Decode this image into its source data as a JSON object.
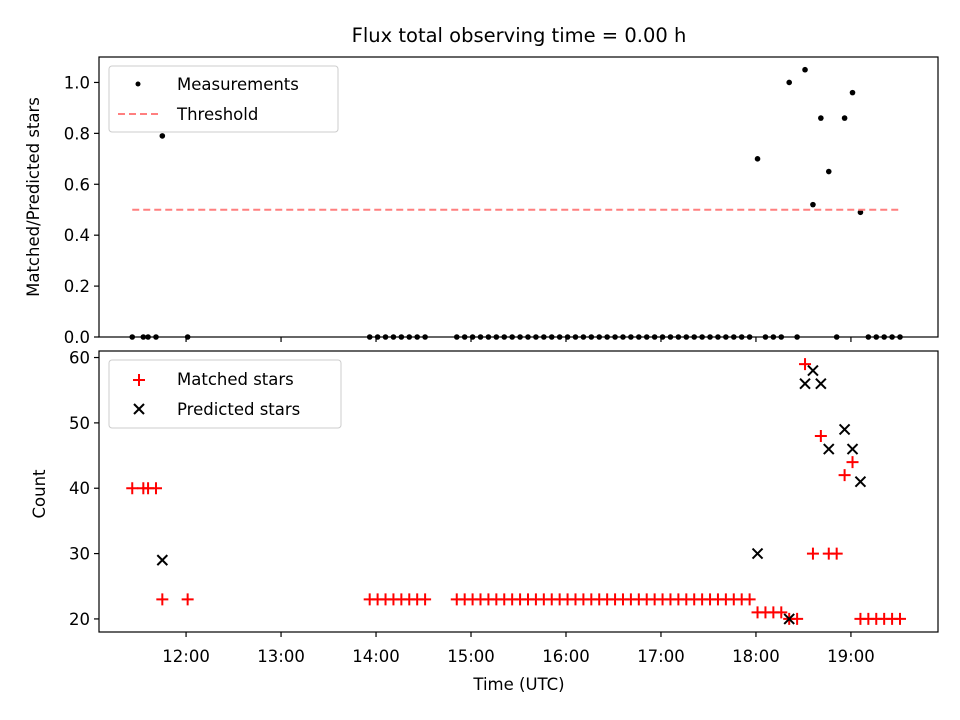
{
  "chart_data": {
    "title": "Flux total observing time = 0.00 h",
    "panels": [
      {
        "type": "scatter",
        "ylabel": "Matched/Predicted stars",
        "ylim": [
          0,
          1.1
        ],
        "yticks": [
          0.0,
          0.2,
          0.4,
          0.6,
          0.8,
          1.0
        ],
        "ytick_labels": [
          "0.0",
          "0.2",
          "0.4",
          "0.6",
          "0.8",
          "1.0"
        ],
        "legend": {
          "placement": "upper-left",
          "entries": [
            "Measurements",
            "Threshold"
          ]
        },
        "series": [
          {
            "name": "Measurements",
            "marker": "dot",
            "color": "#000000",
            "points": [
              [
                "11:26",
                0.0
              ],
              [
                "11:33",
                0.0
              ],
              [
                "11:36",
                0.0
              ],
              [
                "11:41",
                0.0
              ],
              [
                "11:45",
                0.79
              ],
              [
                "12:01",
                0.0
              ],
              [
                "13:56",
                0.0
              ],
              [
                "14:01",
                0.0
              ],
              [
                "14:06",
                0.0
              ],
              [
                "14:11",
                0.0
              ],
              [
                "14:16",
                0.0
              ],
              [
                "14:21",
                0.0
              ],
              [
                "14:26",
                0.0
              ],
              [
                "14:31",
                0.0
              ],
              [
                "14:51",
                0.0
              ],
              [
                "14:56",
                0.0
              ],
              [
                "15:01",
                0.0
              ],
              [
                "15:06",
                0.0
              ],
              [
                "15:11",
                0.0
              ],
              [
                "15:16",
                0.0
              ],
              [
                "15:21",
                0.0
              ],
              [
                "15:26",
                0.0
              ],
              [
                "15:31",
                0.0
              ],
              [
                "15:36",
                0.0
              ],
              [
                "15:41",
                0.0
              ],
              [
                "15:46",
                0.0
              ],
              [
                "15:51",
                0.0
              ],
              [
                "15:56",
                0.0
              ],
              [
                "16:01",
                0.0
              ],
              [
                "16:06",
                0.0
              ],
              [
                "16:11",
                0.0
              ],
              [
                "16:16",
                0.0
              ],
              [
                "16:21",
                0.0
              ],
              [
                "16:26",
                0.0
              ],
              [
                "16:31",
                0.0
              ],
              [
                "16:36",
                0.0
              ],
              [
                "16:41",
                0.0
              ],
              [
                "16:46",
                0.0
              ],
              [
                "16:51",
                0.0
              ],
              [
                "16:56",
                0.0
              ],
              [
                "17:01",
                0.0
              ],
              [
                "17:06",
                0.0
              ],
              [
                "17:11",
                0.0
              ],
              [
                "17:16",
                0.0
              ],
              [
                "17:21",
                0.0
              ],
              [
                "17:26",
                0.0
              ],
              [
                "17:31",
                0.0
              ],
              [
                "17:36",
                0.0
              ],
              [
                "17:41",
                0.0
              ],
              [
                "17:46",
                0.0
              ],
              [
                "17:51",
                0.0
              ],
              [
                "17:56",
                0.0
              ],
              [
                "18:01",
                0.7
              ],
              [
                "18:06",
                0.0
              ],
              [
                "18:11",
                0.0
              ],
              [
                "18:16",
                0.0
              ],
              [
                "18:21",
                1.0
              ],
              [
                "18:26",
                0.0
              ],
              [
                "18:31",
                1.05
              ],
              [
                "18:36",
                0.52
              ],
              [
                "18:41",
                0.86
              ],
              [
                "18:46",
                0.65
              ],
              [
                "18:51",
                0.0
              ],
              [
                "18:56",
                0.86
              ],
              [
                "19:01",
                0.96
              ],
              [
                "19:06",
                0.49
              ],
              [
                "19:11",
                0.0
              ],
              [
                "19:16",
                0.0
              ],
              [
                "19:21",
                0.0
              ],
              [
                "19:26",
                0.0
              ],
              [
                "19:31",
                0.0
              ]
            ]
          },
          {
            "name": "Threshold",
            "marker": "dashed-line",
            "color": "#ff7f7f",
            "y": 0.5,
            "x_range": [
              "11:26",
              "19:31"
            ]
          }
        ]
      },
      {
        "type": "scatter",
        "ylabel": "Count",
        "xlabel": "Time (UTC)",
        "ylim": [
          18,
          61
        ],
        "yticks": [
          20,
          30,
          40,
          50,
          60
        ],
        "ytick_labels": [
          "20",
          "30",
          "40",
          "50",
          "60"
        ],
        "legend": {
          "placement": "upper-left",
          "entries": [
            "Matched stars",
            "Predicted stars"
          ]
        },
        "series": [
          {
            "name": "Matched stars",
            "marker": "plus",
            "color": "#ff0000",
            "points": [
              [
                "11:26",
                40
              ],
              [
                "11:33",
                40
              ],
              [
                "11:36",
                40
              ],
              [
                "11:41",
                40
              ],
              [
                "11:45",
                23
              ],
              [
                "12:01",
                23
              ],
              [
                "13:56",
                23
              ],
              [
                "14:01",
                23
              ],
              [
                "14:06",
                23
              ],
              [
                "14:11",
                23
              ],
              [
                "14:16",
                23
              ],
              [
                "14:21",
                23
              ],
              [
                "14:26",
                23
              ],
              [
                "14:31",
                23
              ],
              [
                "14:51",
                23
              ],
              [
                "14:56",
                23
              ],
              [
                "15:01",
                23
              ],
              [
                "15:06",
                23
              ],
              [
                "15:11",
                23
              ],
              [
                "15:16",
                23
              ],
              [
                "15:21",
                23
              ],
              [
                "15:26",
                23
              ],
              [
                "15:31",
                23
              ],
              [
                "15:36",
                23
              ],
              [
                "15:41",
                23
              ],
              [
                "15:46",
                23
              ],
              [
                "15:51",
                23
              ],
              [
                "15:56",
                23
              ],
              [
                "16:01",
                23
              ],
              [
                "16:06",
                23
              ],
              [
                "16:11",
                23
              ],
              [
                "16:16",
                23
              ],
              [
                "16:21",
                23
              ],
              [
                "16:26",
                23
              ],
              [
                "16:31",
                23
              ],
              [
                "16:36",
                23
              ],
              [
                "16:41",
                23
              ],
              [
                "16:46",
                23
              ],
              [
                "16:51",
                23
              ],
              [
                "16:56",
                23
              ],
              [
                "17:01",
                23
              ],
              [
                "17:06",
                23
              ],
              [
                "17:11",
                23
              ],
              [
                "17:16",
                23
              ],
              [
                "17:21",
                23
              ],
              [
                "17:26",
                23
              ],
              [
                "17:31",
                23
              ],
              [
                "17:36",
                23
              ],
              [
                "17:41",
                23
              ],
              [
                "17:46",
                23
              ],
              [
                "17:51",
                23
              ],
              [
                "17:56",
                23
              ],
              [
                "18:01",
                21
              ],
              [
                "18:06",
                21
              ],
              [
                "18:11",
                21
              ],
              [
                "18:16",
                21
              ],
              [
                "18:21",
                20
              ],
              [
                "18:26",
                20
              ],
              [
                "18:31",
                59
              ],
              [
                "18:36",
                30
              ],
              [
                "18:41",
                48
              ],
              [
                "18:46",
                30
              ],
              [
                "18:51",
                30
              ],
              [
                "18:56",
                42
              ],
              [
                "19:01",
                44
              ],
              [
                "19:06",
                20
              ],
              [
                "19:11",
                20
              ],
              [
                "19:16",
                20
              ],
              [
                "19:21",
                20
              ],
              [
                "19:26",
                20
              ],
              [
                "19:31",
                20
              ]
            ]
          },
          {
            "name": "Predicted stars",
            "marker": "x",
            "color": "#000000",
            "points": [
              [
                "11:45",
                29
              ],
              [
                "18:01",
                30
              ],
              [
                "18:21",
                20
              ],
              [
                "18:31",
                56
              ],
              [
                "18:36",
                58
              ],
              [
                "18:41",
                56
              ],
              [
                "18:46",
                46
              ],
              [
                "18:56",
                49
              ],
              [
                "19:01",
                46
              ],
              [
                "19:06",
                41
              ]
            ]
          }
        ]
      }
    ],
    "x_axis": {
      "type": "time",
      "xlim": [
        "11:05",
        "19:55"
      ],
      "ticks": [
        "12:00",
        "13:00",
        "14:00",
        "15:00",
        "16:00",
        "17:00",
        "18:00",
        "19:00"
      ],
      "shared": true
    }
  }
}
